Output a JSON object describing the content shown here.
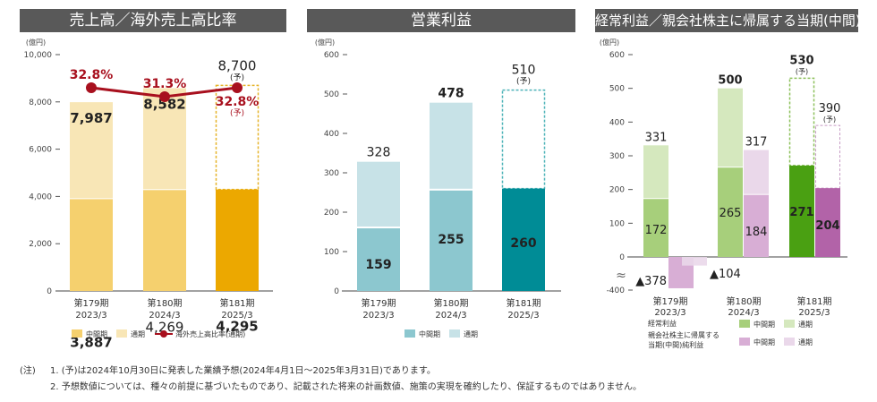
{
  "unit_label": "(億円)",
  "forecast_mark": "(予)",
  "categories": [
    {
      "period": "第179期",
      "year": "2023/3"
    },
    {
      "period": "第180期",
      "year": "2024/3"
    },
    {
      "period": "第181期",
      "year": "2025/3"
    }
  ],
  "chart_data": [
    {
      "type": "bar",
      "title": "売上高／海外売上高比率",
      "ylabel": "(億円)",
      "ylim": [
        0,
        10000
      ],
      "yticks": [
        "0",
        "2,000",
        "4,000",
        "6,000",
        "8,000",
        "10,000"
      ],
      "ytick_values": [
        0,
        2000,
        4000,
        6000,
        8000,
        10000
      ],
      "categories": [
        "第179期 2023/3",
        "第180期 2024/3",
        "第181期 2025/3"
      ],
      "series": [
        {
          "name": "中間期",
          "values": [
            3887,
            4269,
            4295
          ],
          "labels": [
            "3,887",
            "4,269",
            "4,295"
          ]
        },
        {
          "name": "通期",
          "values": [
            7987,
            8582,
            8700
          ],
          "labels": [
            "7,987",
            "8,582",
            "8,700"
          ],
          "forecast": [
            false,
            false,
            true
          ]
        }
      ],
      "line_series": {
        "name": "海外売上高比率(通期)",
        "values": [
          32.8,
          31.3,
          32.8
        ],
        "labels": [
          "32.8%",
          "31.3%",
          "32.8%"
        ],
        "forecast": [
          false,
          false,
          true
        ]
      },
      "legend": [
        "中間期",
        "通期",
        "海外売上高比率(通期)"
      ],
      "legend_position": "bottom",
      "colors": {
        "interim": "#f5d06e",
        "full": "#f8e6b6",
        "interim_current": "#eca800",
        "forecast_border": "#e6b42a",
        "line": "#a8101e"
      }
    },
    {
      "type": "bar",
      "title": "営業利益",
      "ylabel": "(億円)",
      "ylim": [
        0,
        600
      ],
      "yticks": [
        "0",
        "100",
        "200",
        "300",
        "400",
        "500",
        "600"
      ],
      "ytick_values": [
        0,
        100,
        200,
        300,
        400,
        500,
        600
      ],
      "categories": [
        "第179期 2023/3",
        "第180期 2024/3",
        "第181期 2025/3"
      ],
      "series": [
        {
          "name": "中間期",
          "values": [
            159,
            255,
            260
          ],
          "labels": [
            "159",
            "255",
            "260"
          ]
        },
        {
          "name": "通期",
          "values": [
            328,
            478,
            510
          ],
          "labels": [
            "328",
            "478",
            "510"
          ],
          "forecast": [
            false,
            false,
            true
          ]
        }
      ],
      "legend": [
        "中間期",
        "通期"
      ],
      "legend_position": "bottom",
      "colors": {
        "interim": "#8cc7cf",
        "full": "#c7e2e7",
        "interim_current": "#008c96",
        "forecast_border": "#4db3b8"
      }
    },
    {
      "type": "bar",
      "title": "経常利益／親会社株主に帰属する当期(中間)純利益",
      "ylabel": "(億円)",
      "ylim": [
        -400,
        600
      ],
      "axis_break": true,
      "yticks": [
        "-400",
        "0",
        "100",
        "200",
        "300",
        "400",
        "500",
        "600"
      ],
      "ytick_values": [
        -400,
        0,
        100,
        200,
        300,
        400,
        500,
        600
      ],
      "categories": [
        "第179期 2023/3",
        "第180期 2024/3",
        "第181期 2025/3"
      ],
      "series": [
        {
          "name": "経常利益 中間期",
          "values": [
            172,
            265,
            271
          ],
          "labels": [
            "172",
            "265",
            "271"
          ]
        },
        {
          "name": "経常利益 通期",
          "values": [
            331,
            500,
            530
          ],
          "labels": [
            "331",
            "500",
            "530"
          ],
          "forecast": [
            false,
            false,
            true
          ]
        },
        {
          "name": "親会社株主に帰属する当期(中間)純利益 中間期",
          "values": [
            -378,
            184,
            204
          ],
          "labels": [
            "▲378",
            "184",
            "204"
          ]
        },
        {
          "name": "親会社株主に帰属する当期(中間)純利益 通期",
          "values": [
            -104,
            317,
            390
          ],
          "labels": [
            "▲104",
            "317",
            "390"
          ],
          "forecast": [
            false,
            false,
            true
          ]
        }
      ],
      "legend": [
        {
          "group": "経常利益",
          "items": [
            "中間期",
            "通期"
          ]
        },
        {
          "group": "親会社株主に帰属する当期(中間)純利益",
          "items": [
            "中間期",
            "通期"
          ]
        }
      ],
      "legend_position": "bottom",
      "colors": {
        "ord_interim": "#a7cf7b",
        "ord_full": "#d5e8be",
        "ord_current": "#4aa012",
        "ord_forecast_border": "#8cc05a",
        "net_interim": "#d8aed5",
        "net_full": "#ead8ea",
        "net_current": "#b263a8",
        "net_forecast_border": "#c69bc4"
      }
    }
  ],
  "panel_titles": [
    "売上高／海外売上高比率",
    "営業利益",
    "経常利益／親会社株主に帰属する当期(中間)純利益"
  ],
  "legend1": {
    "interim": "中間期",
    "full": "通期",
    "line": "海外売上高比率(通期)"
  },
  "legend2": {
    "interim": "中間期",
    "full": "通期"
  },
  "legend3": {
    "ord_group": "経常利益",
    "net_group_line1": "親会社株主に帰属する",
    "net_group_line2": "当期(中間)純利益",
    "interim": "中間期",
    "full": "通期"
  },
  "axis_break_symbol": "≈",
  "notes": {
    "label": "(注)",
    "line1": "1. (予)は2024年10月30日に発表した業績予想(2024年4月1日～2025年3月31日)であります。",
    "line2": "2. 予想数値については、種々の前提に基づいたものであり、記載された将来の計画数値、施策の実現を確約したり、保証するものではありません。"
  }
}
